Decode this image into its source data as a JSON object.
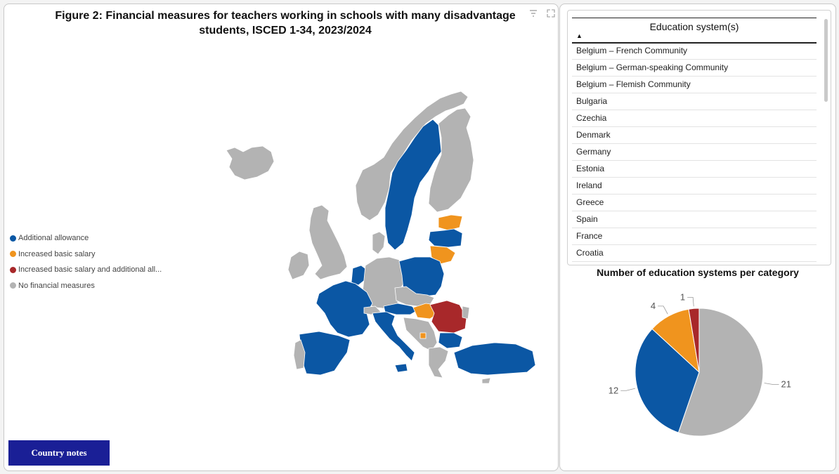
{
  "figure": {
    "title_line1": "Figure 2: Financial measures for teachers working in schools with many disadvantage",
    "title_line2": "students, ISCED 1-34, 2023/2024",
    "filter_icon": "filter-icon",
    "expand_icon": "expand-icon"
  },
  "legend": {
    "items": [
      {
        "label": "Additional allowance",
        "color": "#0B57A4"
      },
      {
        "label": "Increased basic salary",
        "color": "#F0941E"
      },
      {
        "label": "Increased basic salary and additional all...",
        "color": "#A8282A"
      },
      {
        "label": "No financial measures",
        "color": "#B3B3B3"
      }
    ]
  },
  "map": {
    "colors": {
      "allowance": "#0B57A4",
      "salary": "#F0941E",
      "both": "#A8282A",
      "none": "#B3B3B3"
    }
  },
  "button": {
    "label": "Country notes"
  },
  "table": {
    "header": "Education system(s)",
    "sort_icon": "sort-ascending-icon",
    "rows": [
      "Belgium – French Community",
      "Belgium – German-speaking Community",
      "Belgium – Flemish Community",
      "Bulgaria",
      "Czechia",
      "Denmark",
      "Germany",
      "Estonia",
      "Ireland",
      "Greece",
      "Spain",
      "France",
      "Croatia"
    ]
  },
  "pie": {
    "title": "Number of education systems per category"
  },
  "chart_data": {
    "type": "pie",
    "title": "Number of education systems per category",
    "categories": [
      "No financial measures",
      "Additional allowance",
      "Increased basic salary",
      "Increased basic salary and additional allowance"
    ],
    "values": [
      21,
      12,
      4,
      1
    ],
    "colors": [
      "#B3B3B3",
      "#0B57A4",
      "#F0941E",
      "#A8282A"
    ]
  }
}
